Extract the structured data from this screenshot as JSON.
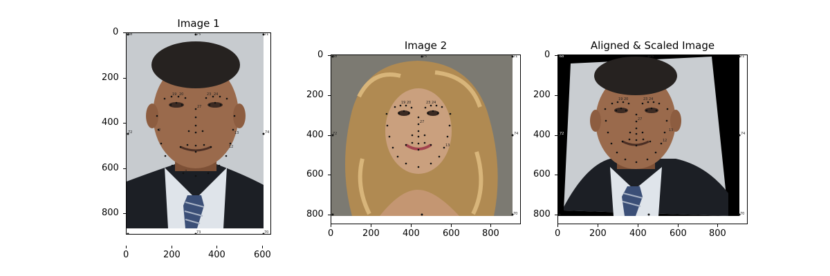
{
  "figure": {
    "panels": [
      {
        "title": "Image 1",
        "subject": "portrait photo of a man in dark suit, white shirt and striped blue tie with facial landmark points",
        "colors": {
          "bg": "#c8ccd0",
          "skin": "#9a6a4c",
          "hair": "#262220",
          "suit": "#1c1f25",
          "shirt": "#dfe4ea",
          "tie": "#3b4f77"
        },
        "x_ticks": [
          "0",
          "200",
          "400",
          "600"
        ],
        "y_ticks": [
          "0",
          "200",
          "400",
          "600",
          "800"
        ],
        "landmark_labels": [
          "68",
          "75",
          "71",
          "72",
          "74",
          "73",
          "70"
        ],
        "face_landmark_labels": [
          "19",
          "20",
          "23",
          "24",
          "27",
          "13",
          "12",
          "7",
          "2"
        ]
      },
      {
        "title": "Image 2",
        "subject": "portrait photo of a woman with long curly blonde hair with facial landmark points",
        "colors": {
          "bg": "#7c7a72",
          "skin": "#caa07e",
          "hair": "#b08a52"
        },
        "x_ticks": [
          "0",
          "200",
          "400",
          "600",
          "800"
        ],
        "y_ticks": [
          "0",
          "200",
          "400",
          "600",
          "800"
        ],
        "landmark_labels": [
          "68",
          "75",
          "71",
          "72",
          "74",
          "70"
        ],
        "face_landmark_labels": [
          "19",
          "20",
          "23",
          "24",
          "27",
          "13"
        ]
      },
      {
        "title": "Aligned & Scaled Image",
        "subject": "man portrait warped and scaled to match image 2 with black borders",
        "colors": {
          "bg": "#c9cdd1",
          "skin": "#9a6a4c",
          "hair": "#262220",
          "suit": "#1c1f25",
          "shirt": "#dfe4ea",
          "tie": "#3b4f77",
          "border": "#000000"
        },
        "x_ticks": [
          "0",
          "200",
          "400",
          "600",
          "800"
        ],
        "y_ticks": [
          "0",
          "200",
          "400",
          "600",
          "800"
        ],
        "landmark_labels": [
          "68",
          "75",
          "71",
          "72",
          "74",
          "70"
        ],
        "face_landmark_labels": [
          "19",
          "20",
          "23",
          "24",
          "27",
          "13",
          "12"
        ]
      }
    ]
  }
}
